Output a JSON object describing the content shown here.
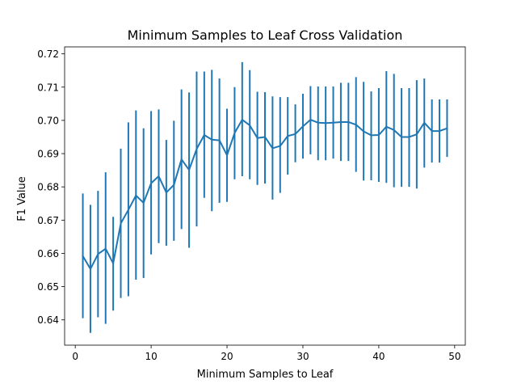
{
  "chart_data": {
    "type": "line",
    "title": "Minimum Samples to Leaf Cross Validation",
    "xlabel": "Minimum Samples to Leaf",
    "ylabel": "F1 Value",
    "xlim": [
      -1.4,
      51.4
    ],
    "ylim": [
      0.6324,
      0.7221
    ],
    "xticks": [
      0,
      10,
      20,
      30,
      40,
      50
    ],
    "xtick_labels": [
      "0",
      "10",
      "20",
      "30",
      "40",
      "50"
    ],
    "yticks": [
      0.64,
      0.65,
      0.66,
      0.67,
      0.68,
      0.69,
      0.7,
      0.71,
      0.72
    ],
    "ytick_labels": [
      "0.64",
      "0.65",
      "0.66",
      "0.67",
      "0.68",
      "0.69",
      "0.70",
      "0.71",
      "0.72"
    ],
    "grid": false,
    "legend": "none",
    "color": "#1f77b4",
    "series": [
      {
        "x": [
          1,
          2,
          3,
          4,
          5,
          6,
          7,
          8,
          9,
          10,
          11,
          12,
          13,
          14,
          15,
          16,
          17,
          18,
          19,
          20,
          21,
          22,
          23,
          24,
          25,
          26,
          27,
          28,
          29,
          30,
          31,
          32,
          33,
          34,
          35,
          36,
          37,
          38,
          39,
          40,
          41,
          42,
          43,
          44,
          45,
          46,
          47,
          48,
          49
        ],
        "y": [
          0.6592,
          0.6553,
          0.6598,
          0.6614,
          0.657,
          0.669,
          0.6731,
          0.6774,
          0.6752,
          0.6811,
          0.6832,
          0.6783,
          0.6806,
          0.6883,
          0.6851,
          0.6914,
          0.6956,
          0.6942,
          0.694,
          0.6895,
          0.6962,
          0.7002,
          0.6985,
          0.6947,
          0.695,
          0.6916,
          0.6923,
          0.6953,
          0.6959,
          0.6982,
          0.7002,
          0.6993,
          0.6992,
          0.6993,
          0.6995,
          0.6995,
          0.6987,
          0.6967,
          0.6955,
          0.6956,
          0.6981,
          0.6971,
          0.695,
          0.695,
          0.6958,
          0.6993,
          0.6968,
          0.6968,
          0.6976
        ],
        "yerr_low": [
          0.6405,
          0.6361,
          0.6408,
          0.6388,
          0.6428,
          0.6466,
          0.6471,
          0.6521,
          0.6526,
          0.6597,
          0.6631,
          0.6623,
          0.6638,
          0.6673,
          0.6617,
          0.6681,
          0.6767,
          0.6727,
          0.6752,
          0.6755,
          0.6823,
          0.6832,
          0.6823,
          0.6806,
          0.681,
          0.6762,
          0.6782,
          0.6837,
          0.6874,
          0.6885,
          0.6898,
          0.688,
          0.688,
          0.6885,
          0.6878,
          0.6878,
          0.6845,
          0.6819,
          0.682,
          0.6815,
          0.6812,
          0.6799,
          0.68,
          0.68,
          0.6795,
          0.6858,
          0.6873,
          0.6873,
          0.689
        ],
        "yerr_high": [
          0.678,
          0.6746,
          0.6788,
          0.6844,
          0.671,
          0.6915,
          0.6994,
          0.703,
          0.6976,
          0.7028,
          0.7033,
          0.6941,
          0.6999,
          0.7093,
          0.7084,
          0.7147,
          0.7147,
          0.7152,
          0.7126,
          0.7035,
          0.71,
          0.7175,
          0.7151,
          0.7086,
          0.7085,
          0.7072,
          0.707,
          0.707,
          0.7048,
          0.708,
          0.7103,
          0.7102,
          0.7102,
          0.7102,
          0.7113,
          0.7113,
          0.713,
          0.7116,
          0.7087,
          0.7097,
          0.7148,
          0.714,
          0.7097,
          0.7097,
          0.7121,
          0.7126,
          0.7063,
          0.7063,
          0.7063
        ]
      }
    ]
  }
}
